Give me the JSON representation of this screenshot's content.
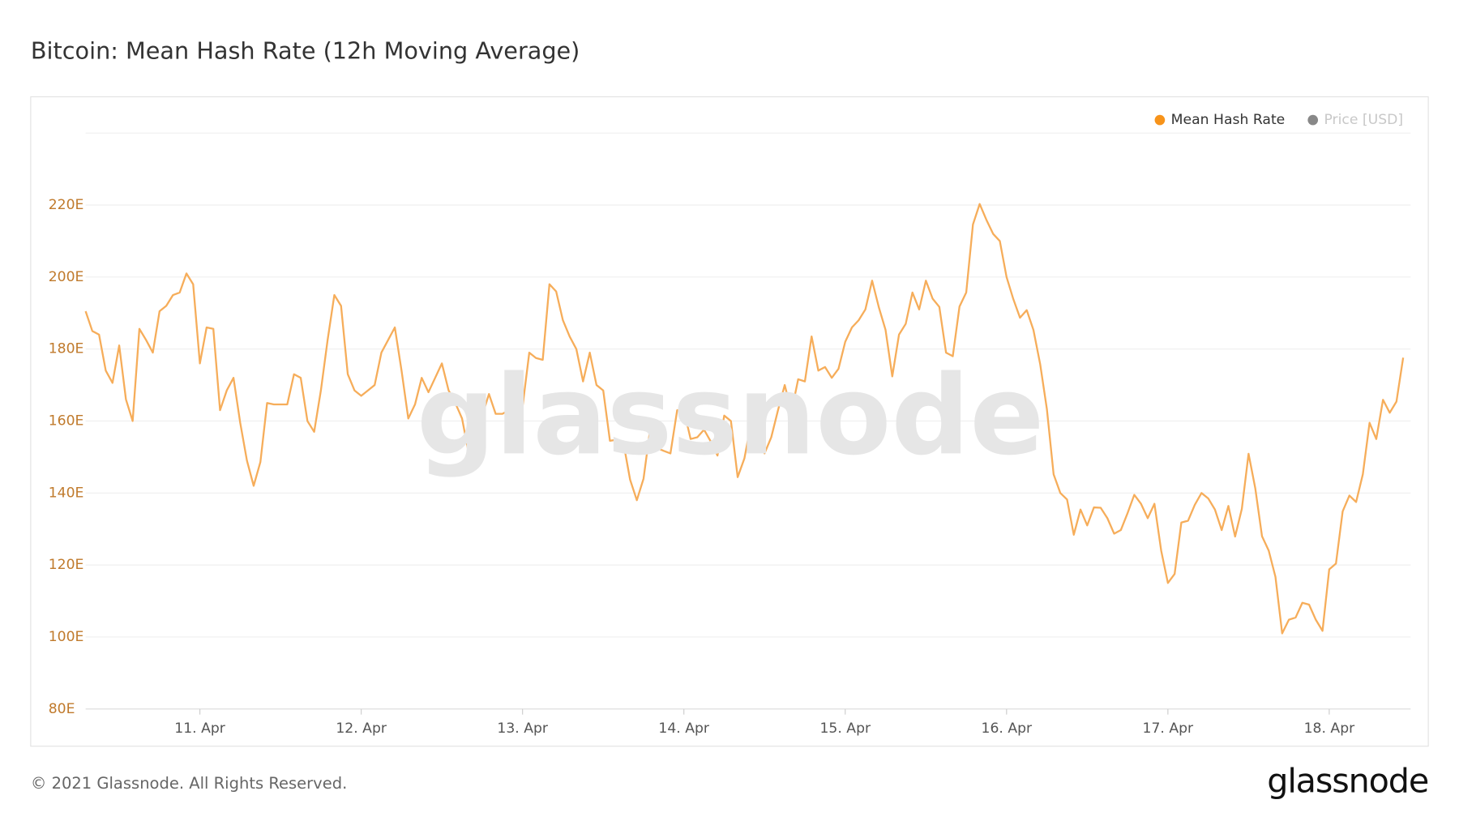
{
  "chart_data": {
    "type": "line",
    "title": "Bitcoin: Mean Hash Rate (12h Moving Average)",
    "watermark": "glassnode",
    "footer": "© 2021 Glassnode. All Rights Reserved.",
    "logo": "glassnode",
    "categories": [
      null,
      null,
      null,
      null,
      null,
      null,
      null,
      null,
      null,
      null,
      null,
      null,
      null,
      null,
      null,
      null,
      null,
      "11. Apr",
      null,
      null,
      null,
      null,
      null,
      null,
      null,
      null,
      null,
      null,
      null,
      null,
      null,
      null,
      null,
      null,
      null,
      null,
      null,
      null,
      null,
      null,
      null,
      "12. Apr",
      null,
      null,
      null,
      null,
      null,
      null,
      null,
      null,
      null,
      null,
      null,
      null,
      null,
      null,
      null,
      null,
      null,
      null,
      null,
      null,
      null,
      null,
      null,
      "13. Apr",
      null,
      null,
      null,
      null,
      null,
      null,
      null,
      null,
      null,
      null,
      null,
      null,
      null,
      null,
      null,
      null,
      null,
      null,
      null,
      null,
      null,
      null,
      null,
      "14. Apr",
      null,
      null,
      null,
      null,
      null,
      null,
      null,
      null,
      null,
      null,
      null,
      null,
      null,
      null,
      null,
      null,
      null,
      null,
      null,
      null,
      null,
      null,
      null,
      "15. Apr",
      null,
      null,
      null,
      null,
      null,
      null,
      null,
      null,
      null,
      null,
      null,
      null,
      null,
      null,
      null,
      null,
      null,
      null,
      null,
      null,
      null,
      null,
      null,
      "16. Apr",
      null,
      null,
      null,
      null,
      null,
      null,
      null,
      null,
      null,
      null,
      null,
      null,
      null,
      null,
      null,
      null,
      null,
      null,
      null,
      null,
      null,
      null,
      null,
      "17. Apr",
      null,
      null,
      null,
      null,
      null,
      null,
      null,
      null,
      null,
      null,
      null,
      null,
      null,
      null,
      null,
      null,
      null,
      null,
      null,
      null,
      null,
      null,
      null,
      "18. Apr",
      null,
      null,
      null,
      null,
      null,
      null,
      null,
      null,
      null,
      null,
      null
    ],
    "series": [
      {
        "name": "Mean Hash Rate",
        "color": "#f7931a",
        "line_color": "#f6ad5a",
        "visible": true,
        "values": [
          190.5,
          185,
          184,
          174,
          170.6,
          181,
          166,
          160,
          185.6,
          182.5,
          179,
          190.5,
          192,
          195,
          195.7,
          201,
          198,
          176,
          186,
          185.6,
          163,
          168.5,
          172,
          159.5,
          149,
          142,
          148.6,
          165,
          164.6,
          164.6,
          164.6,
          173,
          172,
          160,
          157,
          168.5,
          182.5,
          195,
          192,
          173,
          168.5,
          167,
          168.5,
          170,
          179,
          182.5,
          186,
          174,
          160.7,
          164.6,
          172,
          168,
          172,
          176,
          168.5,
          165,
          160.7,
          151,
          158,
          161.5,
          167.5,
          162,
          162,
          163,
          164,
          164,
          179,
          177.5,
          177,
          198,
          196,
          188,
          183.5,
          180,
          171,
          179,
          170,
          168.5,
          154.5,
          154.8,
          154,
          143.7,
          138,
          144,
          158,
          152.5,
          151.7,
          151,
          163,
          163,
          155,
          155.5,
          157.6,
          154.3,
          150.4,
          161.5,
          160,
          144.4,
          149.6,
          159.5,
          157,
          151,
          155.5,
          163,
          170,
          162.5,
          171.6,
          171,
          183.5,
          174,
          175,
          172,
          174.5,
          182,
          186,
          188,
          191,
          199,
          191.6,
          185.3,
          172.4,
          184,
          187,
          195.7,
          191,
          199,
          194,
          191.7,
          179,
          178,
          191.8,
          195.7,
          214.6,
          220.3,
          215.9,
          212,
          210,
          200,
          193.9,
          188.7,
          190.8,
          185.3,
          175.8,
          163.3,
          145.2,
          140,
          138.2,
          128.4,
          135.4,
          131,
          136,
          135.9,
          133,
          128.7,
          129.7,
          134.4,
          139.5,
          137,
          133,
          137,
          124,
          115,
          117.5,
          131.8,
          132.3,
          136.7,
          140,
          138.5,
          135.4,
          129.7,
          136.4,
          127.9,
          135.6,
          150.9,
          141.3,
          128,
          124,
          116.7,
          101,
          104.8,
          105.4,
          109.5,
          109,
          104.8,
          101.7,
          118.8,
          120.4,
          134.9,
          139.3,
          137.5,
          145.2,
          159.5,
          155,
          165.9,
          162.3,
          165.4,
          177.6
        ]
      },
      {
        "name": "Price [USD]",
        "color": "#888888",
        "visible": false
      }
    ],
    "ylim": [
      80,
      240
    ],
    "yticks": [
      {
        "value": 80,
        "label": "80E"
      },
      {
        "value": 100,
        "label": "100E"
      },
      {
        "value": 120,
        "label": "120E"
      },
      {
        "value": 140,
        "label": "140E"
      },
      {
        "value": 160,
        "label": "160E"
      },
      {
        "value": 180,
        "label": "180E"
      },
      {
        "value": 200,
        "label": "200E"
      },
      {
        "value": 220,
        "label": "220E"
      }
    ],
    "grid": true
  }
}
